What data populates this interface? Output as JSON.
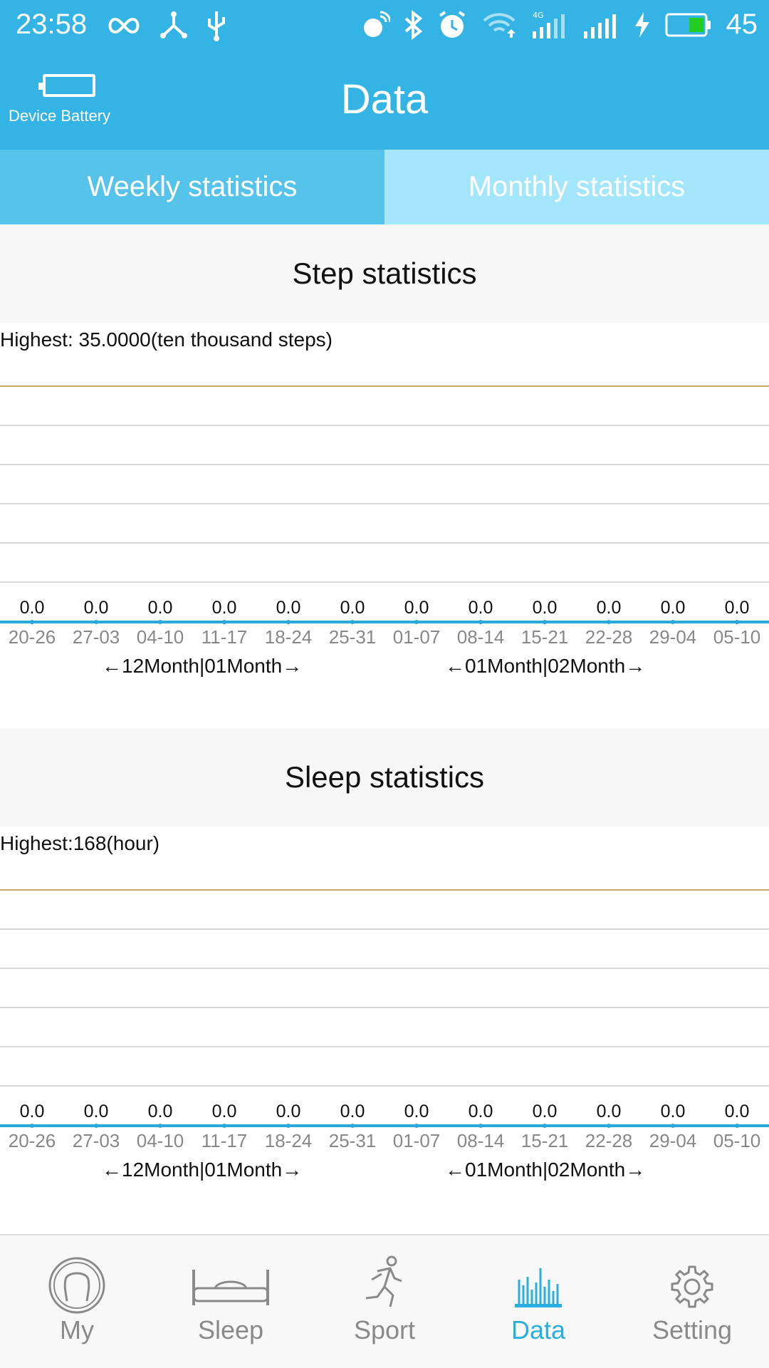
{
  "status_bar": {
    "time": "23:58",
    "battery_percent": "45",
    "battery_fill_color": "#22cc22"
  },
  "header": {
    "device_battery_label": "Device Battery",
    "title": "Data"
  },
  "tabs": [
    {
      "label": "Weekly statistics",
      "active": true
    },
    {
      "label": "Monthly statistics",
      "active": false
    }
  ],
  "step_stats": {
    "title": "Step statistics",
    "highest_label": "Highest: 35.0000(ten thousand steps)",
    "chart_data": {
      "type": "line",
      "categories": [
        "20-26",
        "27-03",
        "04-10",
        "11-17",
        "18-24",
        "25-31",
        "01-07",
        "08-14",
        "15-21",
        "22-28",
        "29-04",
        "05-10"
      ],
      "values": [
        0.0,
        0.0,
        0.0,
        0.0,
        0.0,
        0.0,
        0.0,
        0.0,
        0.0,
        0.0,
        0.0,
        0.0
      ],
      "value_labels": [
        "0.0",
        "0.0",
        "0.0",
        "0.0",
        "0.0",
        "0.0",
        "0.0",
        "0.0",
        "0.0",
        "0.0",
        "0.0",
        "0.0"
      ],
      "ylim": [
        0,
        35
      ],
      "grid": true
    },
    "month_labels": [
      "←12Month|01Month→",
      "←01Month|02Month→"
    ]
  },
  "sleep_stats": {
    "title": "Sleep statistics",
    "highest_label": "Highest:168(hour)",
    "chart_data": {
      "type": "line",
      "categories": [
        "20-26",
        "27-03",
        "04-10",
        "11-17",
        "18-24",
        "25-31",
        "01-07",
        "08-14",
        "15-21",
        "22-28",
        "29-04",
        "05-10"
      ],
      "values": [
        0.0,
        0.0,
        0.0,
        0.0,
        0.0,
        0.0,
        0.0,
        0.0,
        0.0,
        0.0,
        0.0,
        0.0
      ],
      "value_labels": [
        "0.0",
        "0.0",
        "0.0",
        "0.0",
        "0.0",
        "0.0",
        "0.0",
        "0.0",
        "0.0",
        "0.0",
        "0.0",
        "0.0"
      ],
      "ylim": [
        0,
        168
      ],
      "grid": true
    },
    "month_labels": [
      "←12Month|01Month→",
      "←01Month|02Month→"
    ]
  },
  "bottom_nav": [
    {
      "label": "My",
      "icon": "head-profile-icon",
      "active": false
    },
    {
      "label": "Sleep",
      "icon": "bed-icon",
      "active": false
    },
    {
      "label": "Sport",
      "icon": "runner-icon",
      "active": false
    },
    {
      "label": "Data",
      "icon": "bar-chart-icon",
      "active": true
    },
    {
      "label": "Setting",
      "icon": "gear-icon",
      "active": false
    }
  ],
  "colors": {
    "primary": "#33b4e4",
    "accent": "#2aa8d8",
    "tab_inactive": "#a4e6fb"
  }
}
